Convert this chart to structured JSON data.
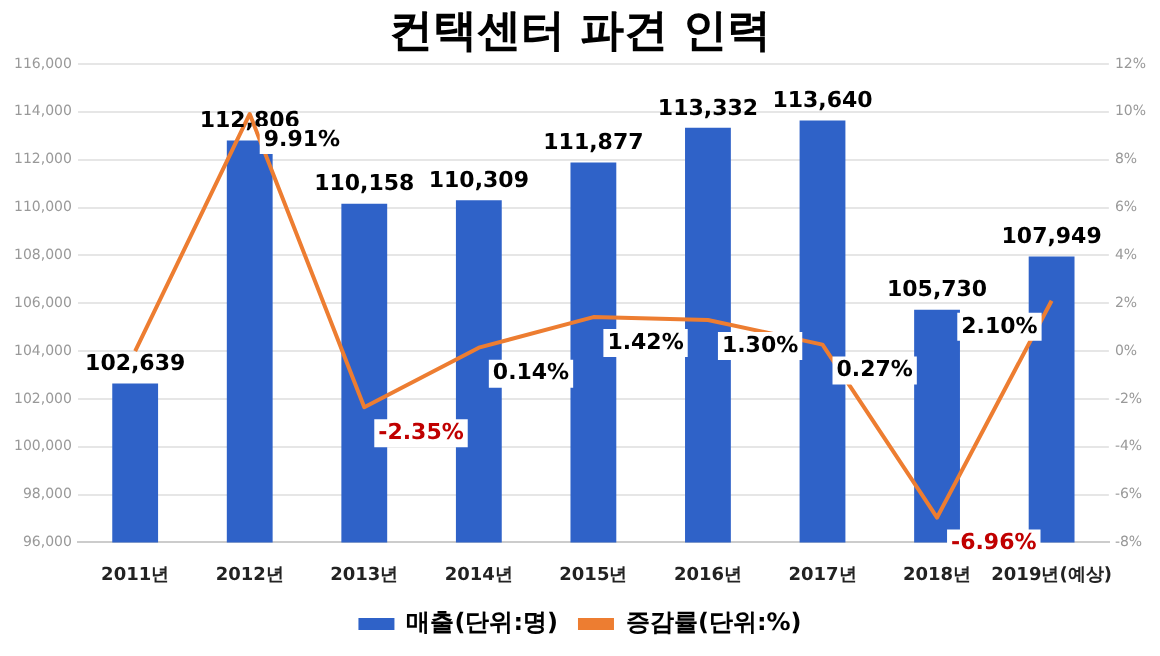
{
  "chart_data": {
    "type": "bar",
    "title": "컨택센터 파견 인력",
    "categories": [
      "2011년",
      "2012년",
      "2013년",
      "2014년",
      "2015년",
      "2016년",
      "2017년",
      "2018년",
      "2019년(예상)"
    ],
    "series": [
      {
        "name": "매출(단위:명)",
        "color": "#2f62c8",
        "values": [
          102639,
          112806,
          110158,
          110309,
          111877,
          113332,
          113640,
          105730,
          107949
        ],
        "value_labels": [
          "102,639",
          "112,806",
          "110,158",
          "110,309",
          "111,877",
          "113,332",
          "113,640",
          "105,730",
          "107,949"
        ]
      },
      {
        "name": "증감률(단위:%)",
        "type": "line",
        "axis": "y2",
        "color": "#ed7d31",
        "values": [
          0,
          9.91,
          -2.35,
          0.14,
          1.42,
          1.3,
          0.27,
          -6.96,
          2.1
        ],
        "value_labels": [
          null,
          "9.91%",
          "-2.35%",
          "0.14%",
          "1.42%",
          "1.30%",
          "0.27%",
          "-6.96%",
          "2.10%"
        ]
      }
    ],
    "ylim": [
      96000,
      116000
    ],
    "yticks": [
      {
        "value": 96000,
        "label": "96,000"
      },
      {
        "value": 98000,
        "label": "98,000"
      },
      {
        "value": 100000,
        "label": "100,000"
      },
      {
        "value": 102000,
        "label": "102,000"
      },
      {
        "value": 104000,
        "label": "104,000"
      },
      {
        "value": 106000,
        "label": "106,000"
      },
      {
        "value": 108000,
        "label": "108,000"
      },
      {
        "value": 110000,
        "label": "110,000"
      },
      {
        "value": 112000,
        "label": "112,000"
      },
      {
        "value": 114000,
        "label": "114,000"
      },
      {
        "value": 116000,
        "label": "116,000"
      }
    ],
    "y2lim": [
      -8,
      12
    ],
    "y2ticks": [
      {
        "value": -8,
        "label": "-8%"
      },
      {
        "value": -6,
        "label": "-6%"
      },
      {
        "value": -4,
        "label": "-4%"
      },
      {
        "value": -2,
        "label": "-2%"
      },
      {
        "value": 0,
        "label": "0%"
      },
      {
        "value": 2,
        "label": "2%"
      },
      {
        "value": 4,
        "label": "4%"
      },
      {
        "value": 6,
        "label": "6%"
      },
      {
        "value": 8,
        "label": "8%"
      },
      {
        "value": 10,
        "label": "10%"
      },
      {
        "value": 12,
        "label": "12%"
      }
    ],
    "grid": "y",
    "legend": "bottom",
    "marker": "none",
    "line_style": "solid"
  }
}
